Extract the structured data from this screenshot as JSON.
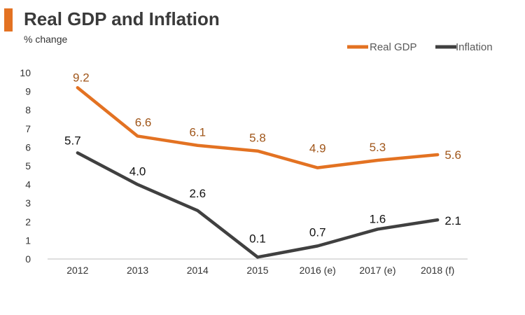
{
  "colors": {
    "accent": "#E37222",
    "real_gdp": "#E37222",
    "inflation": "#404040",
    "gdp_label": "#A0561A"
  },
  "chart_data": {
    "type": "line",
    "title": "Real GDP and Inflation",
    "subtitle": "% change",
    "xlabel": "",
    "ylabel": "% change",
    "categories": [
      "2012",
      "2013",
      "2014",
      "2015",
      "2016 (e)",
      "2017 (e)",
      "2018 (f)"
    ],
    "ylim": [
      0,
      10
    ],
    "yticks": [
      "0",
      "1",
      "2",
      "3",
      "4",
      "5",
      "6",
      "7",
      "8",
      "9",
      "10"
    ],
    "legend_position": "top-right",
    "grid": false,
    "series": [
      {
        "name": "Real GDP",
        "values": [
          9.2,
          6.6,
          6.1,
          5.8,
          4.9,
          5.3,
          5.6
        ],
        "labels": [
          "9.2",
          "6.6",
          "6.1",
          "5.8",
          "4.9",
          "5.3",
          "5.6"
        ]
      },
      {
        "name": "Inflation",
        "values": [
          5.7,
          4.0,
          2.6,
          0.1,
          0.7,
          1.6,
          2.1
        ],
        "labels": [
          "5.7",
          "4.0",
          "2.6",
          "0.1",
          "0.7",
          "1.6",
          "2.1"
        ]
      }
    ]
  }
}
